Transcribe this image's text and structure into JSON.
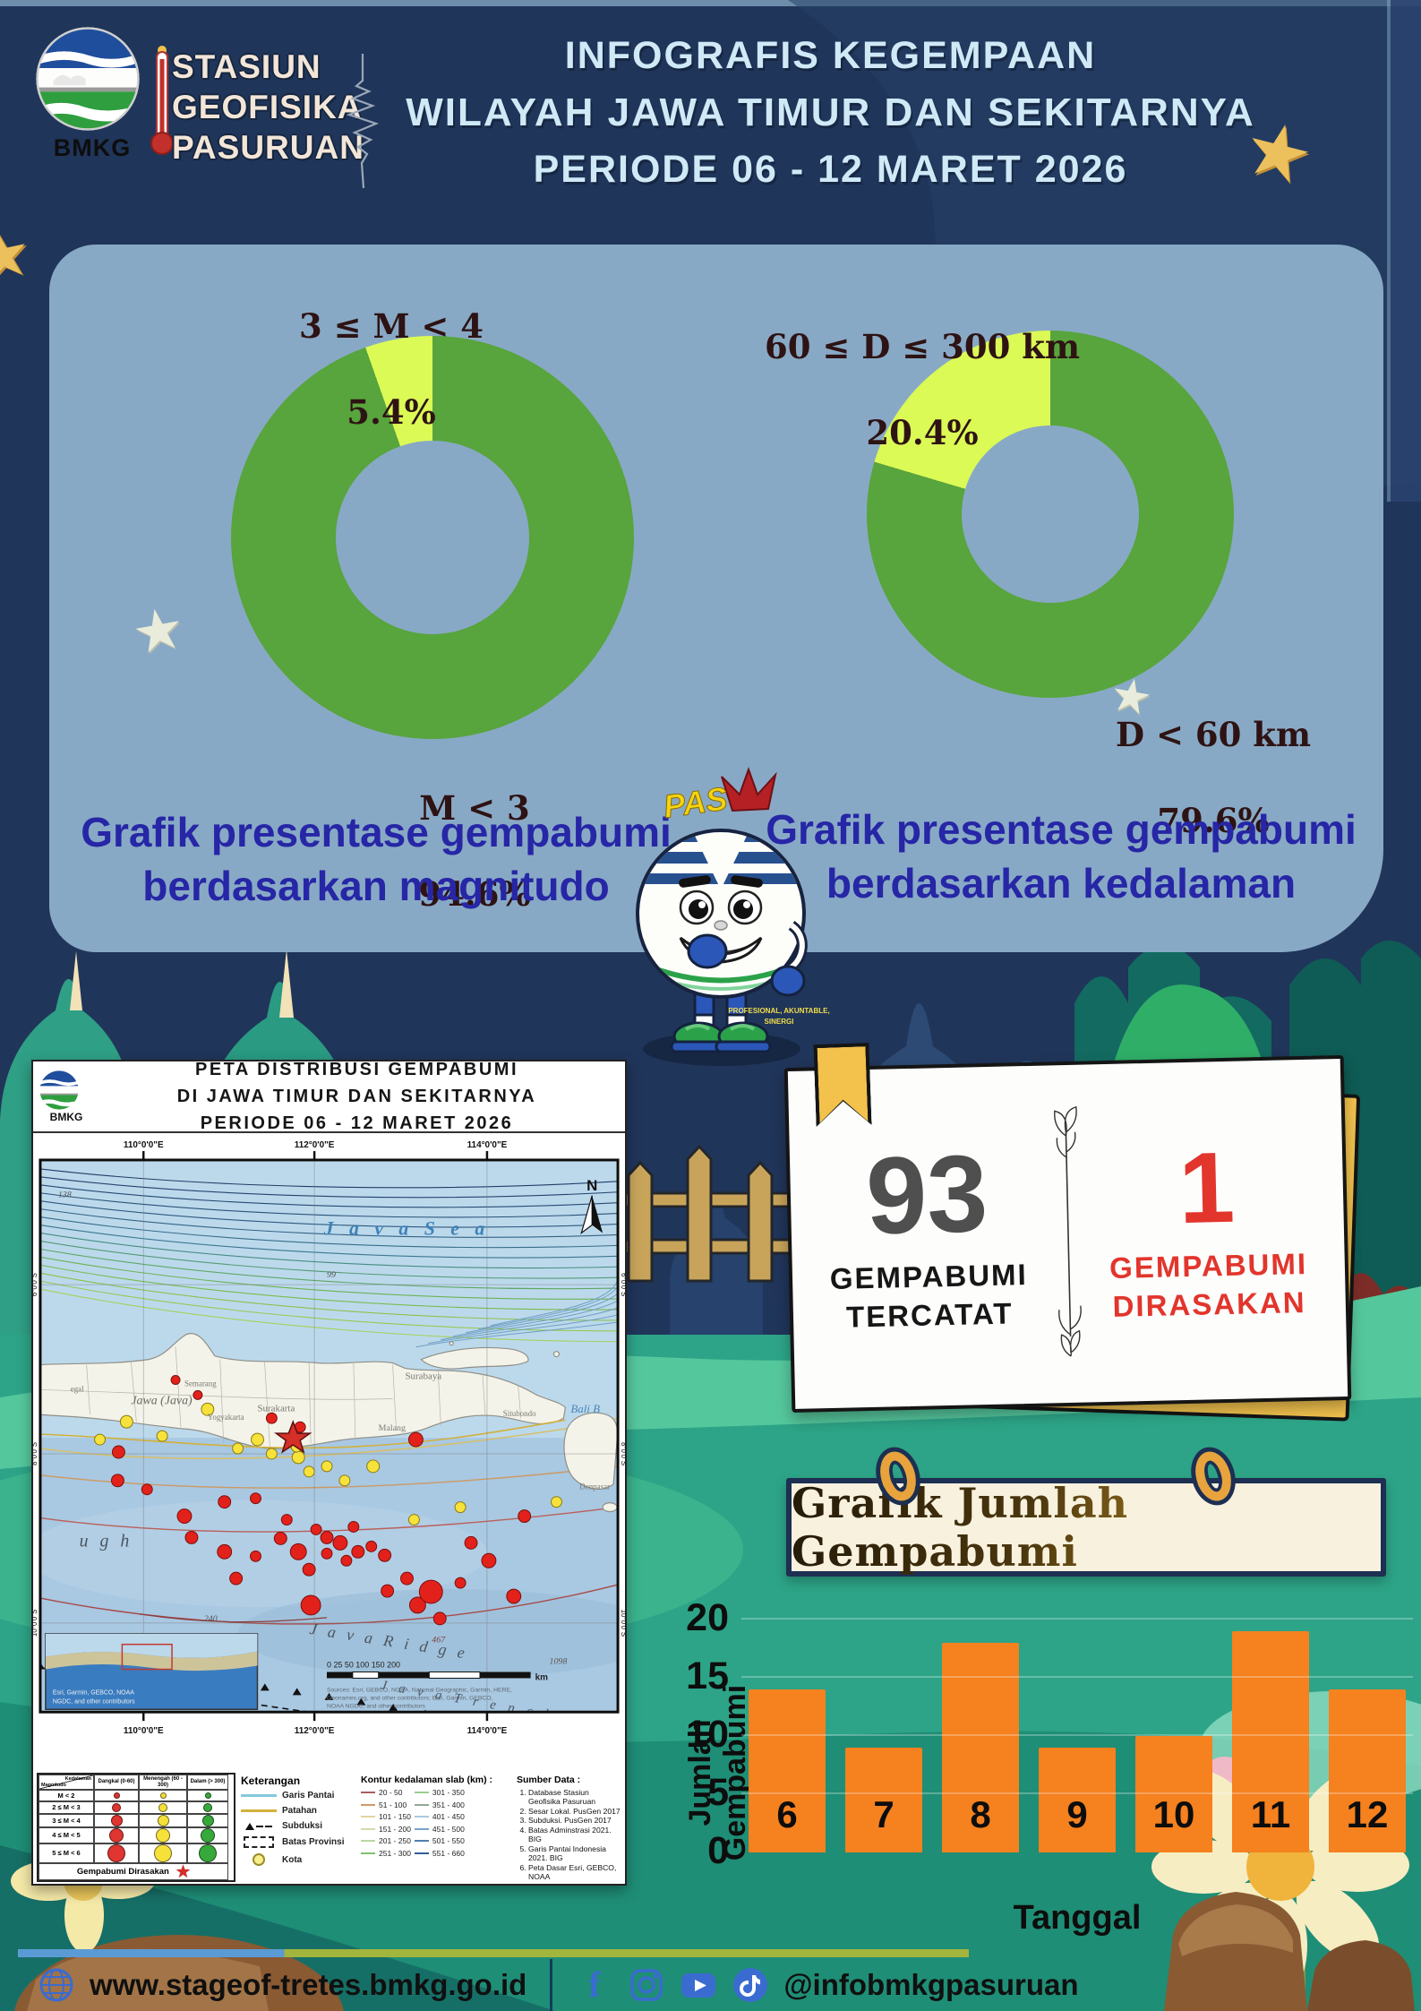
{
  "header": {
    "bmkg": "BMKG",
    "station_lines": "STASIUN\nGEOFISIKA\nPASURUAN",
    "title_lines": [
      "INFOGRAFIS KEGEMPAAN",
      "WILAYAH JAWA TIMUR DAN SEKITARNYA",
      "PERIODE 06 - 12 MARET 2026"
    ]
  },
  "chart_data": [
    {
      "type": "pie",
      "subtype": "donut",
      "title": "Grafik presentase gempabumi berdasarkan magnitudo",
      "caption": "Grafik presentase gempabumi\nberdasarkan magnitudo",
      "slices": [
        {
          "label": "M < 3",
          "pct": 94.6,
          "pct_label": "94.6%",
          "color": "#58a43d"
        },
        {
          "label": "3 ≤ M < 4",
          "pct": 5.4,
          "pct_label": "5.4%",
          "color": "#dbfa55"
        }
      ]
    },
    {
      "type": "pie",
      "subtype": "donut",
      "title": "Grafik presentase gempabumi berdasarkan kedalaman",
      "caption": "Grafik presentase gempabumi\nberdasarkan kedalaman",
      "slices": [
        {
          "label": "D < 60 km",
          "pct": 79.6,
          "pct_label": "79.6%",
          "color": "#58a43d"
        },
        {
          "label": "60 ≤ D ≤ 300 km",
          "pct": 20.4,
          "pct_label": "20.4%",
          "color": "#dbfa55"
        }
      ]
    },
    {
      "type": "bar",
      "title": "Grafik Jumlah Gempabumi",
      "categories": [
        "6",
        "7",
        "8",
        "9",
        "10",
        "11",
        "12"
      ],
      "values": [
        14,
        9,
        18,
        9,
        10,
        19,
        14
      ],
      "xlabel": "Tanggal",
      "ylabel": "Jumlah Gempabumi",
      "yticks": [
        0,
        5,
        10,
        15,
        20
      ],
      "ylim": [
        0,
        20
      ],
      "bar_color": "#f5811f",
      "legend_position": "none",
      "grid": "faint horizontal"
    }
  ],
  "stats": {
    "recorded": {
      "value": "93",
      "label": "GEMPABUMI\nTERCATAT"
    },
    "felt": {
      "value": "1",
      "label": "GEMPABUMI\nDIRASAKAN"
    }
  },
  "banner": {
    "title": "Grafik Jumlah Gempabumi"
  },
  "mascot": {
    "pas": "PAS",
    "motto1": "PROFESIONAL, AKUNTABLE,",
    "motto2": "SINERGI"
  },
  "map": {
    "logo": "BMKG",
    "title_lines": [
      "PETA DISTRIBUSI GEMPABUMI",
      "DI JAWA TIMUR DAN SEKITARNYA",
      "PERIODE 06 - 12 MARET 2026"
    ],
    "coords_e": [
      "110°0'0\"E",
      "112°0'0\"E",
      "114°0'0\"E"
    ],
    "coords_s": [
      "6°0'0\"S",
      "8°0'0\"S",
      "10°0'0\"S"
    ],
    "labels": {
      "java_sea": "J a v a   S e a",
      "jawa": "Jawa (Java)",
      "tegal": "egal",
      "semarang": "Semarang",
      "yogyakarta": "Yogyakarta",
      "surakarta": "Surakarta",
      "surabaya": "Surabaya",
      "malang": "Malang",
      "situbondo": "Situbondo",
      "bali": "Bali B",
      "denpasar": "Denpasar",
      "trough": "u g h",
      "ridge": "J a v a   R i d g e",
      "trench": "J a v a   T r e n c h",
      "north": "N",
      "d138": "138",
      "d99": "99",
      "d240": "240",
      "d467": "467",
      "d1098": "1098",
      "d7260": "7260"
    },
    "scale": {
      "ticks": "0   25   50         100        150        200",
      "unit": "km"
    },
    "sources": [
      "Sources: Esri, GEBCO, NOAA, National Geographic, Garmin, HERE,",
      "Geonames.org, and other contributors; Esri, Garmin, GEBCO,",
      "NOAA NGDC, and other contributors"
    ],
    "inset_credit": [
      "Esri, Garmin, GEBCO, NOAA",
      "NGDC, and other contributors"
    ],
    "legend": {
      "table": {
        "corner_top": "Kedalaman",
        "corner_bottom": "Magnitudo",
        "columns": [
          "Dangkal (0-60)",
          "Menengah (60 - 300)",
          "Dalam (> 300)"
        ],
        "dot_colors": [
          "#e03530",
          "#f5e13a",
          "#37a93c"
        ],
        "rows": [
          {
            "label": "M < 2",
            "size": 5
          },
          {
            "label": "2 ≤ M < 3",
            "size": 8
          },
          {
            "label": "3 ≤ M < 4",
            "size": 11
          },
          {
            "label": "4 ≤ M < 5",
            "size": 14
          },
          {
            "label": "5 ≤ M < 6",
            "size": 18
          }
        ],
        "felt_label": "Gempabumi Dirasakan"
      },
      "keterangan": {
        "title": "Keterangan",
        "items": [
          "Garis Pantai",
          "Patahan",
          "Subduksi",
          "Batas Provinsi",
          "Kota"
        ]
      },
      "kontur": {
        "title": "Kontur kedalaman slab (km) :",
        "items": [
          {
            "range": "20 - 50",
            "color": "#a85c5c"
          },
          {
            "range": "51 - 100",
            "color": "#cf9a68"
          },
          {
            "range": "101 - 150",
            "color": "#e3d3a0"
          },
          {
            "range": "151 - 200",
            "color": "#d6d6ae"
          },
          {
            "range": "201 - 250",
            "color": "#bcd6a0"
          },
          {
            "range": "251 - 300",
            "color": "#7fbf72"
          },
          {
            "range": "301 - 350",
            "color": "#9ccf8e"
          },
          {
            "range": "351 - 400",
            "color": "#93a893"
          },
          {
            "range": "401 - 450",
            "color": "#a9c9dc"
          },
          {
            "range": "451 - 500",
            "color": "#76a3c9"
          },
          {
            "range": "501 - 550",
            "color": "#4f7fb0"
          },
          {
            "range": "551 - 660",
            "color": "#2f5e97"
          }
        ]
      },
      "sumber": {
        "title": "Sumber Data :",
        "items": [
          "Database Stasiun Geofisika Pasuruan",
          "Sesar Lokal. PusGen 2017",
          "Subduksi. PusGen 2017",
          "Batas Adminstrasi 2021. BIG",
          "Garis Pantai Indonesia 2021. BIG",
          "Peta Dasar Esri, GEBCO, NOAA"
        ]
      }
    }
  },
  "footer": {
    "website": "www.stageof-tretes.bmkg.go.id",
    "handle": "@infobmkgpasuruan"
  }
}
